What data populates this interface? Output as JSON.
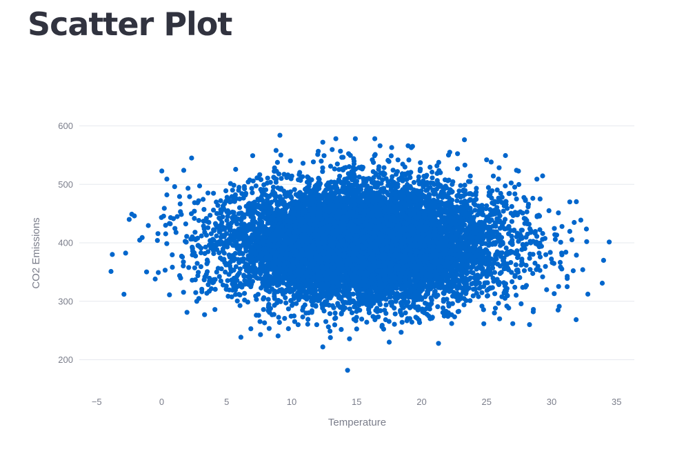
{
  "page": {
    "title": "Scatter Plot"
  },
  "chart_data": {
    "type": "scatter",
    "xlabel": "Temperature",
    "ylabel": "CO2 Emissions",
    "xlim": [
      -6.5,
      37
    ],
    "ylim": [
      150,
      600
    ],
    "xticks": [
      -5,
      0,
      5,
      10,
      15,
      20,
      25,
      30,
      35
    ],
    "yticks": [
      200,
      300,
      400,
      500,
      600
    ],
    "grid": "horizontal",
    "marker_color": "#0066cc",
    "approx_point_count": 10000,
    "distribution": {
      "x_mean": 15.5,
      "x_std": 5.2,
      "y_mean": 400,
      "y_std": 50
    },
    "outliers": [
      {
        "x": -3.8,
        "y": 380
      },
      {
        "x": -3.9,
        "y": 351
      },
      {
        "x": -2.9,
        "y": 312
      },
      {
        "x": -2.3,
        "y": 449
      },
      {
        "x": -2.1,
        "y": 446
      },
      {
        "x": -2.5,
        "y": 440
      },
      {
        "x": -1.5,
        "y": 409
      },
      {
        "x": -0.5,
        "y": 338
      },
      {
        "x": 0.2,
        "y": 459
      },
      {
        "x": 0.4,
        "y": 509
      },
      {
        "x": 0.4,
        "y": 482
      },
      {
        "x": 0.6,
        "y": 311
      },
      {
        "x": 0.3,
        "y": 430
      },
      {
        "x": 1.0,
        "y": 496
      },
      {
        "x": 1.7,
        "y": 524
      },
      {
        "x": 2.3,
        "y": 545
      },
      {
        "x": 2.7,
        "y": 300
      },
      {
        "x": 3.3,
        "y": 277
      },
      {
        "x": 9.1,
        "y": 584
      },
      {
        "x": 7.0,
        "y": 549
      },
      {
        "x": 8.8,
        "y": 558
      },
      {
        "x": 12.4,
        "y": 572
      },
      {
        "x": 13.4,
        "y": 578
      },
      {
        "x": 14.9,
        "y": 578
      },
      {
        "x": 16.4,
        "y": 578
      },
      {
        "x": 16.8,
        "y": 566
      },
      {
        "x": 17.7,
        "y": 563
      },
      {
        "x": 19.3,
        "y": 565
      },
      {
        "x": 12.4,
        "y": 222
      },
      {
        "x": 14.3,
        "y": 182
      },
      {
        "x": 21.3,
        "y": 228
      },
      {
        "x": 7.6,
        "y": 243
      },
      {
        "x": 28.3,
        "y": 260
      },
      {
        "x": 28.6,
        "y": 286
      },
      {
        "x": 30.5,
        "y": 285
      },
      {
        "x": 30.2,
        "y": 313
      },
      {
        "x": 31.2,
        "y": 325
      },
      {
        "x": 32.4,
        "y": 354
      },
      {
        "x": 32.7,
        "y": 402
      },
      {
        "x": 33.9,
        "y": 331
      },
      {
        "x": 34.0,
        "y": 370
      },
      {
        "x": 31.4,
        "y": 470
      },
      {
        "x": 29.8,
        "y": 455
      },
      {
        "x": 30.8,
        "y": 428
      },
      {
        "x": 31.1,
        "y": 384
      },
      {
        "x": 30.7,
        "y": 401
      },
      {
        "x": 27.3,
        "y": 524
      },
      {
        "x": 25.0,
        "y": 542
      },
      {
        "x": 26.0,
        "y": 270
      },
      {
        "x": 25.6,
        "y": 280
      }
    ]
  }
}
